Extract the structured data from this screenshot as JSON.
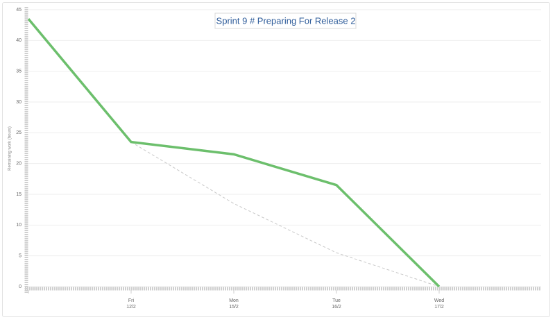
{
  "chart_data": {
    "type": "line",
    "title": "Sprint 9 # Preparing For Release 2",
    "y_label": "Remaining work (hours)",
    "categories": [
      null,
      [
        "Fri",
        "12/2"
      ],
      [
        "Mon",
        "15/2"
      ],
      [
        "Tue",
        "16/2"
      ],
      [
        "Wed",
        "17/2"
      ]
    ],
    "series": [
      {
        "color": "#6cbf6c",
        "dash": false,
        "values": [
          43.5,
          23.5,
          21.5,
          16.5,
          0
        ]
      },
      {
        "color": "#c8c8c8",
        "dash": true,
        "values": [
          null,
          23.5,
          13.5,
          5.5,
          0
        ]
      }
    ],
    "ylim": [
      0,
      45
    ],
    "yticks": [
      0,
      5,
      10,
      15,
      20,
      25,
      30,
      35,
      40,
      45
    ],
    "grid": true
  }
}
